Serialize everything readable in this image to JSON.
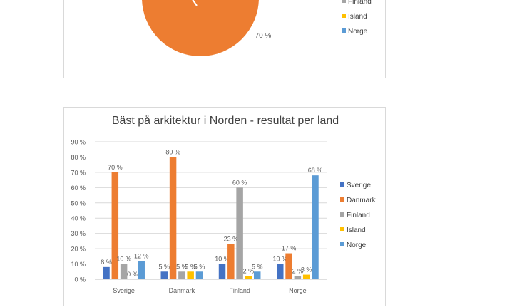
{
  "colors": {
    "Sverige": "#4472c4",
    "Danmark": "#ed7d31",
    "Finland": "#a5a5a5",
    "Island": "#ffc000",
    "Norge": "#5b9bd5",
    "grid": "#d9d9d9",
    "text": "#595959"
  },
  "chart_data": [
    {
      "type": "pie",
      "title": "",
      "labels": [
        "70 %"
      ],
      "legend": [
        "Finland",
        "Island",
        "Norge"
      ],
      "legend_placement": "right"
    },
    {
      "type": "bar",
      "title": "Bäst på arkitektur i Norden - resultat per land",
      "categories": [
        "Sverige",
        "Danmark",
        "Finland",
        "Norge"
      ],
      "series": [
        {
          "name": "Sverige",
          "values": [
            8,
            5,
            10,
            10
          ]
        },
        {
          "name": "Danmark",
          "values": [
            70,
            80,
            23,
            17
          ]
        },
        {
          "name": "Finland",
          "values": [
            10,
            5,
            60,
            2
          ]
        },
        {
          "name": "Island",
          "values": [
            0,
            5,
            2,
            3
          ]
        },
        {
          "name": "Norge",
          "values": [
            12,
            5,
            5,
            68
          ]
        }
      ],
      "data_labels": [
        [
          "8 %",
          "5 %",
          "10 %",
          "10 %"
        ],
        [
          "70 %",
          "80 %",
          "23 %",
          "17 %"
        ],
        [
          "10 %",
          "5 %",
          "60 %",
          "2 %"
        ],
        [
          "0 %",
          "5 %",
          "2 %",
          "3 %"
        ],
        [
          "12 %",
          "5 %",
          "5 %",
          "68 %"
        ]
      ],
      "yticks": [
        "0 %",
        "10 %",
        "20 %",
        "30 %",
        "40 %",
        "50 %",
        "60 %",
        "70 %",
        "80 %",
        "90 %"
      ],
      "ylim": [
        0,
        90
      ],
      "xlabel": "",
      "ylabel": "",
      "grid": true,
      "legend_placement": "right"
    }
  ]
}
